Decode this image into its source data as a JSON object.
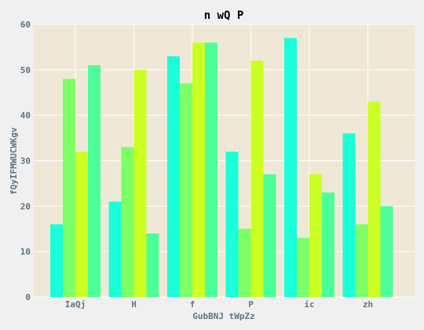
{
  "chart_data": {
    "type": "bar",
    "title": "n wQ P",
    "xlabel": "GubBNJ tWpZz",
    "ylabel": "fQyIFMWUCWKgv",
    "categories": [
      "IaQj",
      "H",
      "f",
      "P",
      "ic",
      "zh"
    ],
    "ylim": [
      0,
      60
    ],
    "yticks": [
      0,
      10,
      20,
      30,
      40,
      50,
      60
    ],
    "grid": true,
    "legend": "none",
    "series": [
      {
        "color": "#1affd9",
        "values": [
          16,
          21,
          53,
          32,
          57,
          36
        ]
      },
      {
        "color": "#7dff66",
        "values": [
          48,
          33,
          47,
          15,
          13,
          16
        ]
      },
      {
        "color": "#ccff22",
        "values": [
          32,
          50,
          56,
          52,
          27,
          43
        ]
      },
      {
        "color": "#4dff99",
        "values": [
          51,
          14,
          56,
          27,
          23,
          20
        ]
      }
    ],
    "plot_background": "#f0e8d6"
  }
}
